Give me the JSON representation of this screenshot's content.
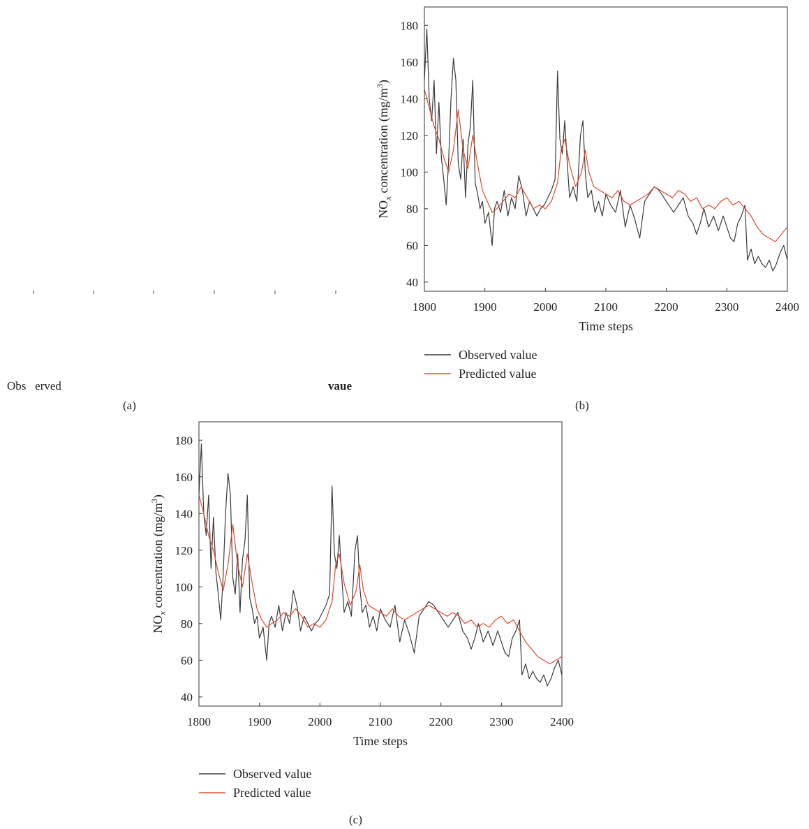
{
  "figure": {
    "panel_labels": [
      "(a)",
      "(b)",
      "(c)"
    ],
    "stray_text": {
      "left": "Obs   erved",
      "right": "vaue"
    }
  },
  "chart_data": [
    {
      "panel": "(b)",
      "type": "line",
      "xlabel": "Time steps",
      "ylabel": "NOx concentration (mg/m3)",
      "ylabel_parts": {
        "main": "NO",
        "sub": "x",
        "rest": " concentration (mg/m",
        "sup": "3",
        "end": ")"
      },
      "xlim": [
        1800,
        2400
      ],
      "ylim": [
        35,
        190
      ],
      "xticks": [
        1800,
        1900,
        2000,
        2100,
        2200,
        2300,
        2400
      ],
      "yticks": [
        40,
        60,
        80,
        100,
        120,
        140,
        160,
        180
      ],
      "legend": "below",
      "colors": {
        "observed": "#3a3a3a",
        "predicted": "#e8462a"
      },
      "series": [
        {
          "name": "Observed value",
          "x": [
            1800,
            1804,
            1808,
            1812,
            1816,
            1820,
            1824,
            1828,
            1832,
            1836,
            1840,
            1844,
            1848,
            1852,
            1856,
            1860,
            1864,
            1868,
            1872,
            1876,
            1880,
            1884,
            1888,
            1892,
            1896,
            1900,
            1906,
            1912,
            1916,
            1920,
            1926,
            1932,
            1938,
            1944,
            1950,
            1956,
            1962,
            1968,
            1974,
            1980,
            1986,
            1992,
            1998,
            2004,
            2010,
            2016,
            2020,
            2024,
            2028,
            2032,
            2036,
            2040,
            2046,
            2052,
            2058,
            2062,
            2066,
            2070,
            2076,
            2082,
            2088,
            2094,
            2100,
            2108,
            2116,
            2124,
            2132,
            2140,
            2148,
            2156,
            2164,
            2172,
            2180,
            2188,
            2196,
            2204,
            2212,
            2220,
            2228,
            2236,
            2244,
            2250,
            2256,
            2262,
            2270,
            2278,
            2286,
            2294,
            2300,
            2306,
            2312,
            2318,
            2324,
            2330,
            2334,
            2340,
            2346,
            2352,
            2358,
            2364,
            2370,
            2376,
            2382,
            2388,
            2394,
            2400
          ],
          "y": [
            150,
            178,
            140,
            128,
            150,
            110,
            138,
            108,
            96,
            82,
            106,
            140,
            162,
            150,
            105,
            96,
            118,
            86,
            115,
            125,
            150,
            94,
            88,
            80,
            84,
            72,
            78,
            60,
            80,
            84,
            78,
            90,
            76,
            86,
            80,
            98,
            90,
            76,
            84,
            80,
            76,
            80,
            82,
            86,
            90,
            96,
            155,
            118,
            110,
            128,
            106,
            86,
            92,
            84,
            120,
            128,
            100,
            86,
            90,
            78,
            84,
            76,
            88,
            82,
            78,
            90,
            70,
            82,
            74,
            64,
            84,
            88,
            92,
            90,
            86,
            82,
            78,
            82,
            86,
            76,
            72,
            66,
            72,
            80,
            70,
            76,
            68,
            76,
            70,
            64,
            62,
            72,
            76,
            82,
            52,
            58,
            50,
            54,
            50,
            48,
            52,
            46,
            50,
            56,
            60,
            52
          ]
        },
        {
          "name": "Predicted value",
          "x": [
            1800,
            1808,
            1816,
            1824,
            1832,
            1840,
            1848,
            1856,
            1864,
            1872,
            1880,
            1888,
            1896,
            1904,
            1912,
            1920,
            1930,
            1940,
            1950,
            1960,
            1970,
            1980,
            1990,
            2000,
            2010,
            2020,
            2026,
            2032,
            2040,
            2050,
            2060,
            2066,
            2072,
            2080,
            2090,
            2100,
            2110,
            2120,
            2130,
            2140,
            2150,
            2160,
            2170,
            2180,
            2190,
            2200,
            2210,
            2220,
            2230,
            2240,
            2250,
            2260,
            2270,
            2280,
            2290,
            2300,
            2310,
            2320,
            2330,
            2340,
            2350,
            2360,
            2370,
            2380,
            2390,
            2400
          ],
          "y": [
            145,
            135,
            125,
            118,
            108,
            100,
            112,
            134,
            112,
            102,
            120,
            104,
            90,
            84,
            78,
            80,
            84,
            88,
            86,
            92,
            86,
            80,
            82,
            80,
            84,
            94,
            112,
            118,
            104,
            92,
            100,
            112,
            100,
            92,
            90,
            88,
            86,
            90,
            84,
            82,
            84,
            86,
            88,
            92,
            90,
            88,
            86,
            90,
            88,
            84,
            86,
            80,
            82,
            80,
            84,
            86,
            82,
            84,
            80,
            76,
            70,
            66,
            64,
            62,
            66,
            70
          ]
        }
      ]
    },
    {
      "panel": "(c)",
      "type": "line",
      "xlabel": "Time steps",
      "ylabel": "NOx concentration (mg/m3)",
      "ylabel_parts": {
        "main": "NO",
        "sub": "x",
        "rest": " concentration (mg/m",
        "sup": "3",
        "end": ")"
      },
      "xlim": [
        1800,
        2400
      ],
      "ylim": [
        35,
        190
      ],
      "xticks": [
        1800,
        1900,
        2000,
        2100,
        2200,
        2300,
        2400
      ],
      "yticks": [
        40,
        60,
        80,
        100,
        120,
        140,
        160,
        180
      ],
      "legend": "below",
      "colors": {
        "observed": "#3a3a3a",
        "predicted": "#e8462a"
      },
      "series": [
        {
          "name": "Observed value",
          "x": [
            1800,
            1804,
            1808,
            1812,
            1816,
            1820,
            1824,
            1828,
            1832,
            1836,
            1840,
            1844,
            1848,
            1852,
            1856,
            1860,
            1864,
            1868,
            1872,
            1876,
            1880,
            1884,
            1888,
            1892,
            1896,
            1900,
            1906,
            1912,
            1916,
            1920,
            1926,
            1932,
            1938,
            1944,
            1950,
            1956,
            1962,
            1968,
            1974,
            1980,
            1986,
            1992,
            1998,
            2004,
            2010,
            2016,
            2020,
            2024,
            2028,
            2032,
            2036,
            2040,
            2046,
            2052,
            2058,
            2062,
            2066,
            2070,
            2076,
            2082,
            2088,
            2094,
            2100,
            2108,
            2116,
            2124,
            2132,
            2140,
            2148,
            2156,
            2164,
            2172,
            2180,
            2188,
            2196,
            2204,
            2212,
            2220,
            2228,
            2236,
            2244,
            2250,
            2256,
            2262,
            2270,
            2278,
            2286,
            2294,
            2300,
            2306,
            2312,
            2318,
            2324,
            2330,
            2334,
            2340,
            2346,
            2352,
            2358,
            2364,
            2370,
            2376,
            2382,
            2388,
            2394,
            2400
          ],
          "y": [
            150,
            178,
            140,
            128,
            150,
            110,
            138,
            108,
            96,
            82,
            106,
            140,
            162,
            150,
            105,
            96,
            118,
            86,
            115,
            125,
            150,
            94,
            88,
            80,
            84,
            72,
            78,
            60,
            80,
            84,
            78,
            90,
            76,
            86,
            80,
            98,
            90,
            76,
            84,
            80,
            76,
            80,
            82,
            86,
            90,
            96,
            155,
            118,
            110,
            128,
            106,
            86,
            92,
            84,
            120,
            128,
            100,
            86,
            90,
            78,
            84,
            76,
            88,
            82,
            78,
            90,
            70,
            82,
            74,
            64,
            84,
            88,
            92,
            90,
            86,
            82,
            78,
            82,
            86,
            76,
            72,
            66,
            72,
            80,
            70,
            76,
            68,
            76,
            70,
            64,
            62,
            72,
            76,
            82,
            52,
            58,
            50,
            54,
            50,
            48,
            52,
            46,
            50,
            56,
            60,
            52
          ]
        },
        {
          "name": "Predicted value",
          "x": [
            1800,
            1808,
            1816,
            1824,
            1832,
            1840,
            1848,
            1856,
            1864,
            1872,
            1880,
            1888,
            1896,
            1904,
            1912,
            1920,
            1930,
            1940,
            1950,
            1960,
            1970,
            1980,
            1990,
            2000,
            2010,
            2020,
            2026,
            2032,
            2040,
            2050,
            2060,
            2066,
            2072,
            2080,
            2090,
            2100,
            2110,
            2120,
            2130,
            2140,
            2150,
            2160,
            2170,
            2180,
            2190,
            2200,
            2210,
            2220,
            2230,
            2240,
            2250,
            2260,
            2270,
            2280,
            2290,
            2300,
            2310,
            2320,
            2330,
            2340,
            2350,
            2360,
            2370,
            2380,
            2390,
            2400
          ],
          "y": [
            150,
            140,
            128,
            120,
            108,
            98,
            112,
            134,
            112,
            100,
            118,
            102,
            88,
            82,
            78,
            80,
            82,
            86,
            84,
            88,
            84,
            78,
            80,
            78,
            82,
            92,
            112,
            118,
            102,
            90,
            98,
            112,
            98,
            90,
            88,
            86,
            84,
            88,
            84,
            82,
            84,
            86,
            88,
            90,
            88,
            86,
            84,
            86,
            84,
            80,
            82,
            78,
            80,
            78,
            82,
            84,
            80,
            82,
            76,
            70,
            66,
            62,
            60,
            58,
            60,
            62
          ]
        }
      ]
    }
  ]
}
